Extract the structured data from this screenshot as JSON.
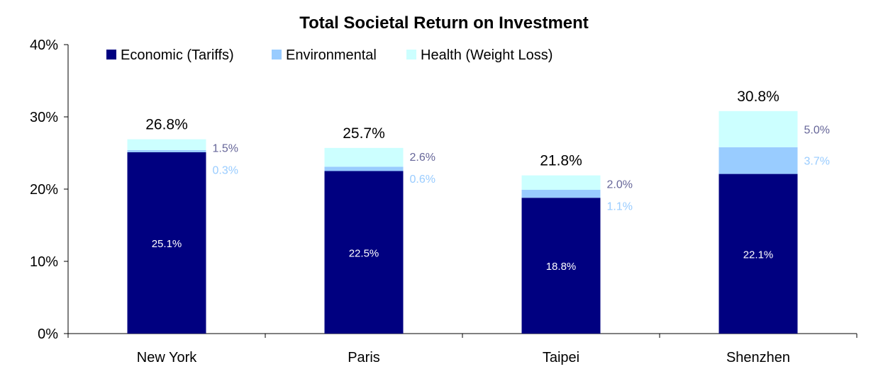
{
  "chart_data": {
    "type": "bar",
    "stacked": true,
    "title": "Total Societal Return on Investment",
    "xlabel": "",
    "ylabel": "",
    "ylim": [
      0,
      40
    ],
    "y_ticks": [
      "0%",
      "10%",
      "20%",
      "30%",
      "40%"
    ],
    "categories": [
      "New York",
      "Paris",
      "Taipei",
      "Shenzhen"
    ],
    "series": [
      {
        "name": "Economic (Tariffs)",
        "color": "#000080",
        "values": [
          25.1,
          22.5,
          18.8,
          22.1
        ],
        "labels": [
          "25.1%",
          "22.5%",
          "18.8%",
          "22.1%"
        ]
      },
      {
        "name": "Environmental",
        "color": "#99CCFF",
        "values": [
          0.3,
          0.6,
          1.1,
          3.7
        ],
        "labels": [
          "0.3%",
          "0.6%",
          "1.1%",
          "3.7%"
        ]
      },
      {
        "name": "Health (Weight Loss)",
        "color": "#CCFFFF",
        "values": [
          1.5,
          2.6,
          2.0,
          5.0
        ],
        "labels": [
          "1.5%",
          "2.6%",
          "2.0%",
          "5.0%"
        ]
      }
    ],
    "totals": [
      "26.8%",
      "25.7%",
      "21.8%",
      "30.8%"
    ],
    "side_label_colors": {
      "Environmental": "#99CCFF",
      "Health (Weight Loss)": "#666699"
    },
    "legend_position": "top-left",
    "grid": false
  }
}
